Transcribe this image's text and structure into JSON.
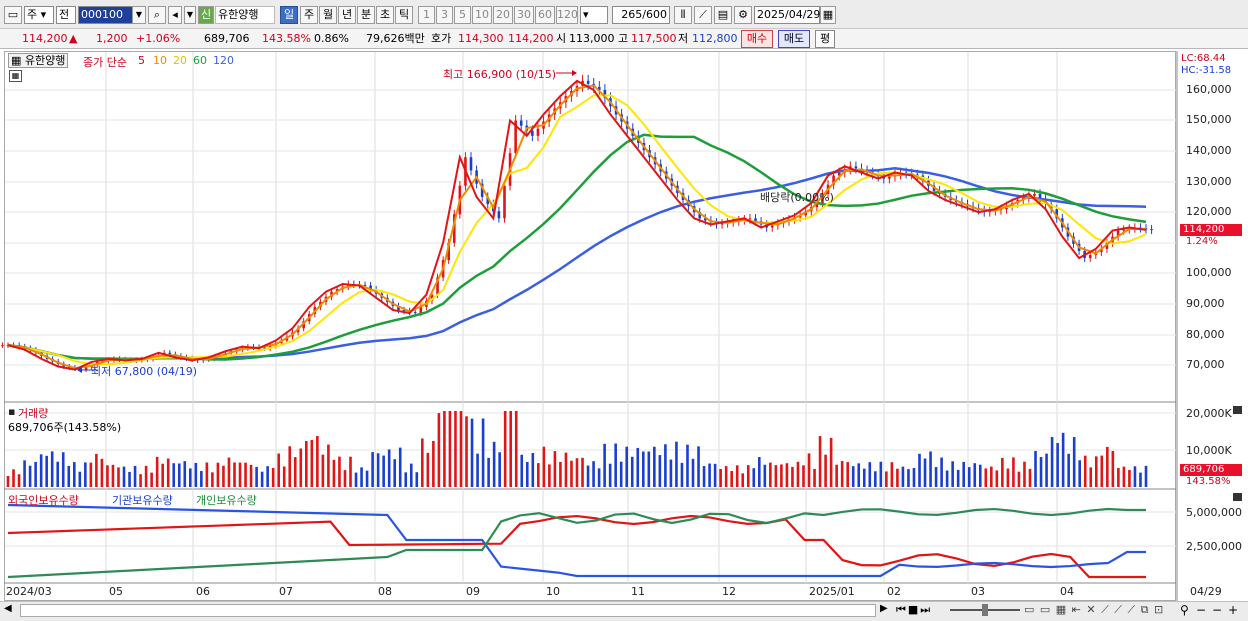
{
  "toolbar": {
    "period": "주",
    "prev": "전",
    "code": "000100",
    "credit": "신",
    "name": "유한양행",
    "periods": [
      "일",
      "주",
      "월",
      "년",
      "분",
      "초",
      "틱"
    ],
    "nums": [
      "1",
      "3",
      "5",
      "10",
      "20",
      "30",
      "60",
      "120"
    ],
    "count": "265",
    "total": "/600",
    "date": "2025/04/29"
  },
  "quote": {
    "price": "114,200",
    "arrow": "▲",
    "change": "1,200",
    "rate": "+1.06%",
    "volume": "689,706",
    "vol_ratio": "143.58%",
    "turnover": "0.86%",
    "amount": "79,626백만",
    "hoga_label": "호가",
    "hoga1": "114,300",
    "hoga2": "114,200",
    "open_label": "시",
    "open": "113,000",
    "high_label": "고",
    "high": "117,500",
    "low_label": "저",
    "low": "112,800",
    "buy": "매수",
    "sell": "매도",
    "eval": "평"
  },
  "legend": {
    "name": "유한양행",
    "title": "종가 단순",
    "ma5": "5",
    "ma10": "10",
    "ma20": "20",
    "ma60": "60",
    "ma120": "120"
  },
  "annotations": {
    "high": "최고 166,900 (10/15)",
    "low": "최저 67,800 (04/19)",
    "dividend": "배당락(0.00%)",
    "lc": "LC:68.44",
    "hc": "HC:-31.58",
    "price_box": "114,200",
    "pct_box": "1.24%"
  },
  "volume_panel": {
    "label": "거래량",
    "info": "689,706주(143.58%)",
    "box": "689,706",
    "pct": "143.58%",
    "ticks": [
      "20,000K",
      "10,000K"
    ]
  },
  "holdings_panel": {
    "labels": [
      "외국인보유수량",
      "기관보유수량",
      "개인보유수량"
    ],
    "ticks": [
      "5,000,000",
      "2,500,000"
    ]
  },
  "chart_data": {
    "type": "candlestick",
    "y_ticks": [
      "160,000",
      "150,000",
      "140,000",
      "130,000",
      "120,000",
      "110,000",
      "100,000",
      "90,000",
      "80,000",
      "70,000"
    ],
    "x_ticks": [
      "2024/03",
      "05",
      "06",
      "07",
      "08",
      "09",
      "10",
      "11",
      "12",
      "2025/01",
      "02",
      "03",
      "04",
      "04/29"
    ],
    "weekly_close": [
      76500,
      75000,
      72000,
      69500,
      68500,
      71000,
      72000,
      71500,
      72000,
      74000,
      72500,
      71500,
      72500,
      74500,
      76000,
      75500,
      78000,
      82000,
      89000,
      94000,
      96500,
      96000,
      92000,
      88000,
      87000,
      93000,
      110000,
      138000,
      125000,
      118000,
      150000,
      145000,
      152000,
      158000,
      163000,
      160000,
      152000,
      145000,
      138000,
      131000,
      124000,
      118000,
      116000,
      117000,
      118000,
      115000,
      117000,
      119000,
      123000,
      132000,
      135000,
      133000,
      131000,
      133000,
      132000,
      127000,
      124000,
      122000,
      120000,
      121000,
      124000,
      126000,
      121000,
      112000,
      105000,
      108000,
      114000,
      115000,
      114200
    ],
    "ma_colors": {
      "ma5": "#e01515",
      "ma10": "#f08a00",
      "ma20": "#ffe600",
      "ma60": "#1e9e3a",
      "ma120": "#3a5fe0"
    }
  },
  "xaxis_bottom": "2024/03"
}
